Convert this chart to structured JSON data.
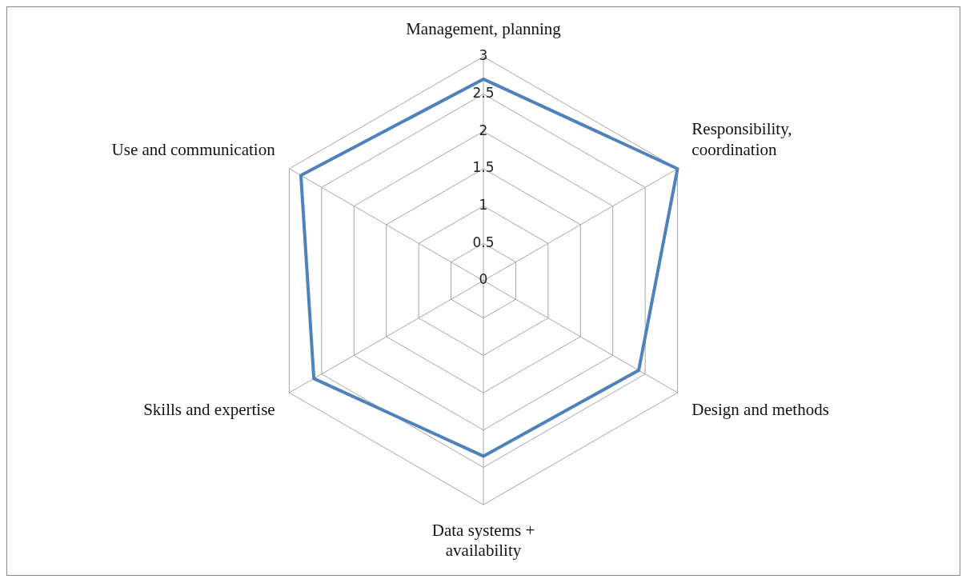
{
  "chart_data": {
    "type": "radar",
    "categories": [
      "Management, planning",
      "Responsibility,\ncoordination",
      "Design and methods",
      "Data systems +\navailability",
      "Skills and expertise",
      "Use and communication"
    ],
    "series": [
      {
        "color": "#4f81bd",
        "values": [
          2.7,
          3.0,
          2.4,
          2.35,
          2.62,
          2.82
        ]
      }
    ],
    "ylim": [
      0,
      3
    ],
    "yticks": [
      0,
      0.5,
      1,
      1.5,
      2,
      2.5,
      3
    ],
    "grid": true,
    "legend": false,
    "marker": "none"
  }
}
